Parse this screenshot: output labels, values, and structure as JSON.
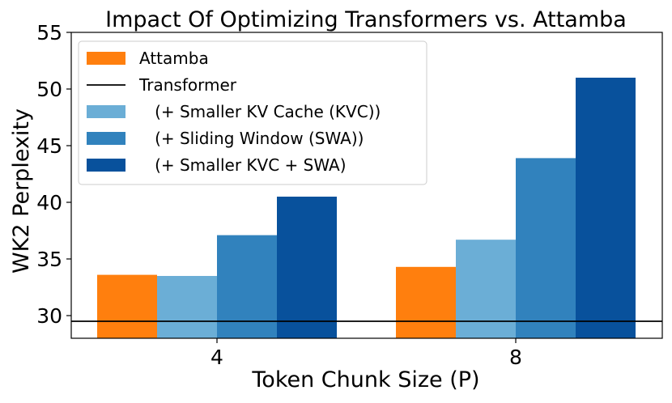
{
  "chart_data": {
    "type": "bar",
    "title": "Impact Of Optimizing Transformers vs. Attamba",
    "xlabel": "Token Chunk Size (P)",
    "ylabel": "WK2 Perplexity",
    "categories": [
      "4",
      "8"
    ],
    "ylim": [
      28.0,
      55
    ],
    "yticks": [
      30,
      35,
      40,
      45,
      50,
      55
    ],
    "grid": false,
    "legend_position": "top-left",
    "series": [
      {
        "name": "Attamba",
        "color": "#ff7f0e",
        "values": [
          33.6,
          34.3
        ]
      },
      {
        "name": "   (+ Smaller KV Cache (KVC))",
        "color": "#6baed6",
        "values": [
          33.5,
          36.7
        ]
      },
      {
        "name": "   (+ Sliding Window (SWA))",
        "color": "#3182bd",
        "values": [
          37.1,
          43.9
        ]
      },
      {
        "name": "   (+ Smaller KVC + SWA)",
        "color": "#08519c",
        "values": [
          40.5,
          51.0
        ]
      }
    ],
    "reference_line": {
      "name": "Transformer",
      "value": 29.5,
      "color": "#000000"
    },
    "legend_order": [
      "Attamba",
      "Transformer",
      "   (+ Smaller KV Cache (KVC))",
      "   (+ Sliding Window (SWA))",
      "   (+ Smaller KVC + SWA)"
    ]
  }
}
